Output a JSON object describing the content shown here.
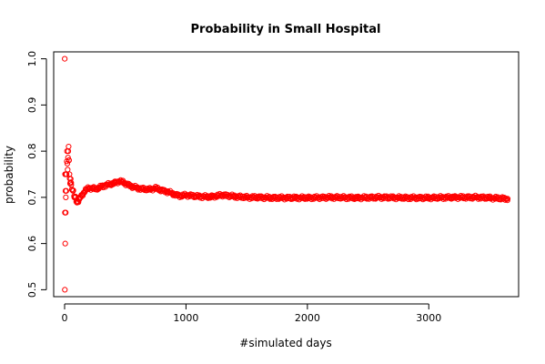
{
  "chart_data": {
    "type": "scatter",
    "title": "Probability in Small Hospital",
    "xlabel": "#simulated days",
    "ylabel": "probability",
    "xlim": [
      -90,
      3740
    ],
    "ylim": [
      0.485,
      1.015
    ],
    "x_ticks": [
      0,
      1000,
      2000,
      3000
    ],
    "y_ticks": [
      0.5,
      0.6,
      0.7,
      0.8,
      0.9,
      1.0
    ],
    "x_tick_labels": [
      "0",
      "1000",
      "2000",
      "3000"
    ],
    "y_tick_labels": [
      "0.5",
      "0.6",
      "0.7",
      "0.8",
      "0.9",
      "1.0"
    ],
    "grid": false,
    "legend": "none",
    "marker": "open-circle",
    "color": "#ff0000",
    "series": [
      {
        "n_days": 3650,
        "x": [
          1,
          2,
          3,
          4,
          5,
          6,
          7,
          8,
          9,
          10,
          12,
          14,
          16,
          18,
          20,
          22,
          25,
          28,
          30,
          33,
          36,
          40,
          45,
          50,
          55,
          60,
          70,
          80,
          90,
          100,
          110,
          120,
          130,
          150,
          170,
          200,
          230,
          260,
          300,
          350,
          400,
          450,
          480,
          500,
          550,
          600,
          650,
          700,
          750,
          800,
          850,
          900,
          950,
          1000,
          1100,
          1200,
          1300,
          1400,
          1500,
          1600,
          1700,
          1800,
          1900,
          2000,
          2200,
          2400,
          2600,
          2800,
          3000,
          3200,
          3400,
          3500,
          3650
        ],
        "y": [
          1.0,
          0.5,
          0.667,
          0.75,
          0.6,
          0.667,
          0.714,
          0.75,
          0.667,
          0.7,
          0.75,
          0.714,
          0.75,
          0.778,
          0.8,
          0.773,
          0.76,
          0.786,
          0.8,
          0.81,
          0.78,
          0.75,
          0.73,
          0.74,
          0.727,
          0.717,
          0.714,
          0.7,
          0.7,
          0.69,
          0.69,
          0.695,
          0.7,
          0.707,
          0.715,
          0.72,
          0.72,
          0.718,
          0.723,
          0.727,
          0.73,
          0.735,
          0.733,
          0.73,
          0.724,
          0.72,
          0.718,
          0.717,
          0.72,
          0.715,
          0.712,
          0.707,
          0.703,
          0.705,
          0.702,
          0.701,
          0.705,
          0.702,
          0.7,
          0.7,
          0.699,
          0.699,
          0.699,
          0.699,
          0.7,
          0.699,
          0.7,
          0.699,
          0.699,
          0.7,
          0.7,
          0.699,
          0.697
        ]
      }
    ]
  }
}
